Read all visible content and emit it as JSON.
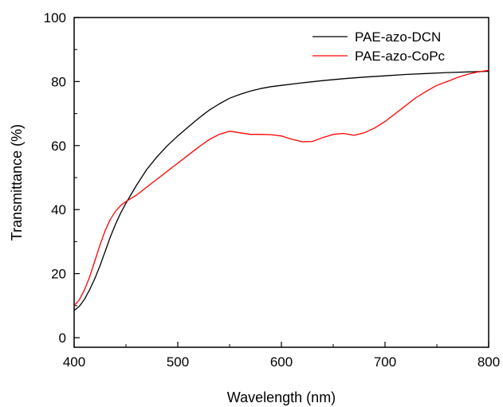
{
  "chart_data": {
    "type": "line",
    "xlabel": "Wavelength (nm)",
    "ylabel": "Transmittance (%)",
    "xlim": [
      400,
      800
    ],
    "ylim": [
      -3,
      100
    ],
    "xticks": [
      400,
      500,
      600,
      700,
      800
    ],
    "yticks": [
      0,
      20,
      40,
      60,
      80,
      100
    ],
    "legend_position": "top-right",
    "grid": false,
    "series": [
      {
        "name": "PAE-azo-DCN",
        "color": "#000000",
        "x": [
          400,
          405,
          410,
          415,
          420,
          425,
          430,
          435,
          440,
          445,
          450,
          460,
          470,
          480,
          490,
          500,
          510,
          520,
          530,
          540,
          550,
          560,
          570,
          580,
          590,
          600,
          620,
          640,
          660,
          680,
          700,
          720,
          740,
          760,
          780,
          800
        ],
        "y": [
          8.5,
          9.8,
          12,
          15,
          18.5,
          22.5,
          27,
          31.5,
          35.5,
          39,
          42,
          47.5,
          52.5,
          56.5,
          60,
          63,
          65.8,
          68.5,
          71,
          73,
          74.8,
          76,
          77,
          77.8,
          78.4,
          78.8,
          79.6,
          80.3,
          80.9,
          81.4,
          81.8,
          82.2,
          82.5,
          82.8,
          83,
          83.2
        ]
      },
      {
        "name": "PAE-azo-CoPc",
        "color": "#ff0000",
        "x": [
          400,
          405,
          410,
          415,
          420,
          425,
          430,
          435,
          440,
          445,
          450,
          460,
          470,
          480,
          490,
          500,
          510,
          520,
          530,
          540,
          550,
          560,
          570,
          580,
          590,
          600,
          610,
          620,
          630,
          640,
          650,
          660,
          670,
          680,
          690,
          700,
          710,
          720,
          730,
          740,
          750,
          760,
          770,
          780,
          790,
          800
        ],
        "y": [
          10,
          11.8,
          15,
          19,
          24,
          29,
          33.5,
          37,
          39.5,
          41.3,
          42.5,
          44.5,
          47,
          49.5,
          52,
          54.5,
          57,
          59.5,
          61.8,
          63.5,
          64.5,
          64,
          63.5,
          63.5,
          63.4,
          63,
          62,
          61.2,
          61.3,
          62.5,
          63.5,
          63.8,
          63.2,
          64,
          65.5,
          67.5,
          70,
          72.5,
          75,
          77,
          78.8,
          80,
          81.3,
          82.3,
          83,
          83.5
        ]
      }
    ]
  }
}
